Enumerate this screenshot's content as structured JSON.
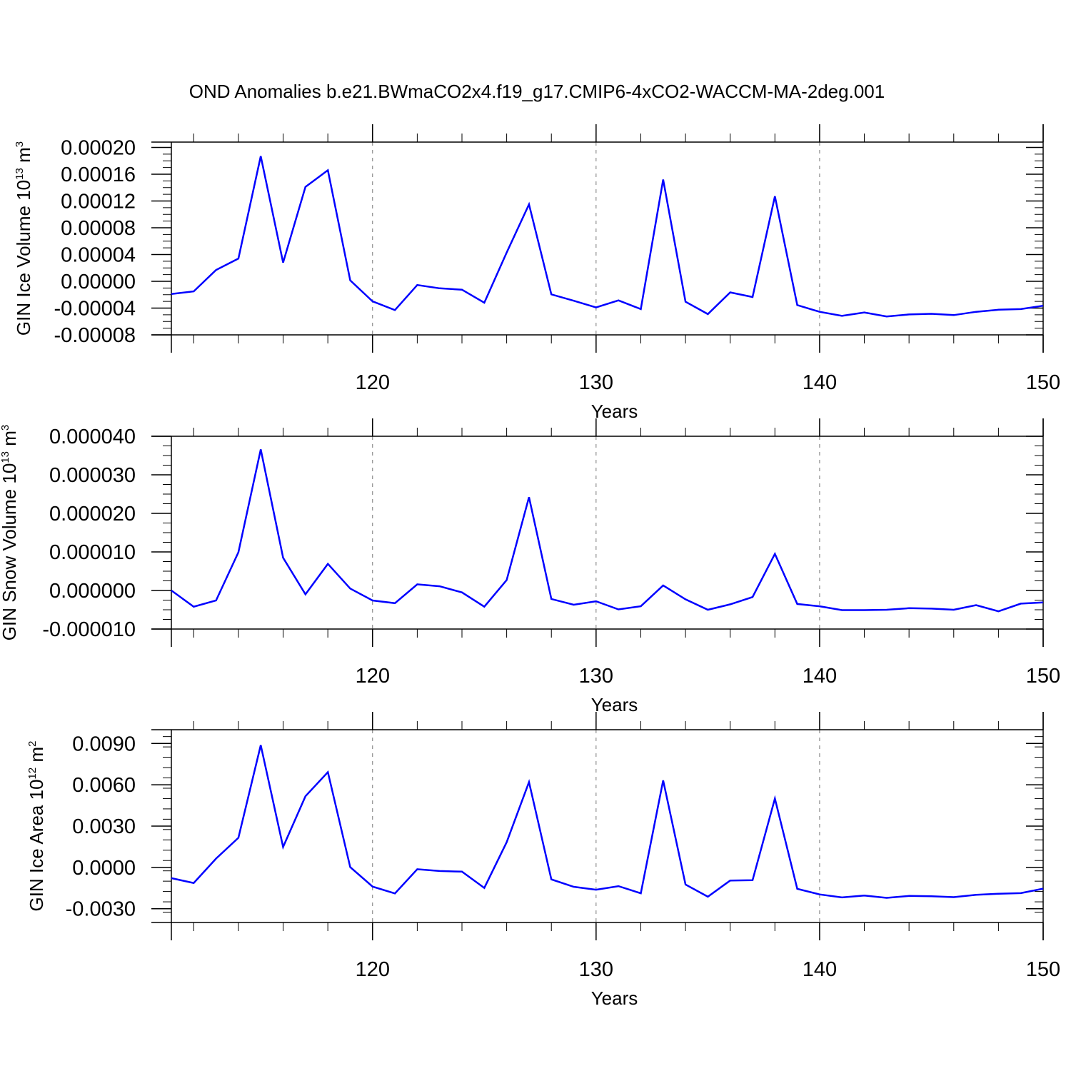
{
  "figure": {
    "title": "OND Anomalies b.e21.BWmaCO2x4.f19_g17.CMIP6-4xCO2-WACCM-MA-2deg.001"
  },
  "chart_data": [
    {
      "type": "line",
      "xlabel": "Years",
      "ylabel_text": "GIN Ice Volume 10",
      "ylabel_exp": "13",
      "ylabel_unit": "m",
      "ylabel_unit_exp": "3",
      "xlim": [
        111,
        150
      ],
      "ylim": [
        -8e-05,
        0.000208
      ],
      "xticks": [
        120,
        130,
        140,
        150
      ],
      "xtick_labels": [
        "120",
        "130",
        "140",
        "150"
      ],
      "yticks": [
        -8e-05,
        -4e-05,
        0,
        4e-05,
        8e-05,
        0.00012,
        0.00016,
        0.0002
      ],
      "ytick_labels": [
        "-0.00008",
        "-0.00004",
        "0.00000",
        "0.00004",
        "0.00008",
        "0.00012",
        "0.00016",
        "0.00020"
      ],
      "grid": "dashed vertical at major x ticks",
      "line_color": "#0000ff",
      "x": [
        111,
        112,
        113,
        114,
        115,
        116,
        117,
        118,
        119,
        120,
        121,
        122,
        123,
        124,
        125,
        126,
        127,
        128,
        129,
        130,
        131,
        132,
        133,
        134,
        135,
        136,
        137,
        138,
        139,
        140,
        141,
        142,
        143,
        144,
        145,
        146,
        147,
        148,
        149,
        150
      ],
      "values": [
        -1.9e-05,
        -1.5e-05,
        1.7e-05,
        3.4e-05,
        0.000187,
        2.8e-05,
        0.000141,
        0.000166,
        1.5e-06,
        -3e-05,
        -4.3e-05,
        -5.5e-06,
        -1.05e-05,
        -1.25e-05,
        -3.2e-05,
        4.3e-05,
        0.000115,
        -1.95e-05,
        -2.9e-05,
        -3.9e-05,
        -2.85e-05,
        -4.15e-05,
        0.000152,
        -3.05e-05,
        -4.9e-05,
        -1.65e-05,
        -2.35e-05,
        0.000127,
        -3.55e-05,
        -4.55e-05,
        -5.15e-05,
        -4.65e-05,
        -5.25e-05,
        -4.95e-05,
        -4.85e-05,
        -5.05e-05,
        -4.55e-05,
        -4.25e-05,
        -4.15e-05,
        -3.65e-05
      ]
    },
    {
      "type": "line",
      "xlabel": "Years",
      "ylabel_text": "GIN Snow Volume 10",
      "ylabel_exp": "13",
      "ylabel_unit": "m",
      "ylabel_unit_exp": "3",
      "xlim": [
        111,
        150
      ],
      "ylim": [
        -1e-05,
        4e-05
      ],
      "xticks": [
        120,
        130,
        140,
        150
      ],
      "xtick_labels": [
        "120",
        "130",
        "140",
        "150"
      ],
      "yticks": [
        -1e-05,
        0,
        1e-05,
        2e-05,
        3e-05,
        4e-05
      ],
      "ytick_labels": [
        "-0.000010",
        "0.000000",
        "0.000010",
        "0.000020",
        "0.000030",
        "0.000040"
      ],
      "grid": "dashed vertical at major x ticks",
      "line_color": "#0000ff",
      "x": [
        111,
        112,
        113,
        114,
        115,
        116,
        117,
        118,
        119,
        120,
        121,
        122,
        123,
        124,
        125,
        126,
        127,
        128,
        129,
        130,
        131,
        132,
        133,
        134,
        135,
        136,
        137,
        138,
        139,
        140,
        141,
        142,
        143,
        144,
        145,
        146,
        147,
        148,
        149,
        150
      ],
      "values": [
        0.0,
        -4.2e-06,
        -2.6e-06,
        9.9e-06,
        3.66e-05,
        8.5e-06,
        -1e-06,
        6.9e-06,
        5e-07,
        -2.6e-06,
        -3.3e-06,
        1.6e-06,
        1.1e-06,
        -5e-07,
        -4.2e-06,
        2.7e-06,
        2.42e-05,
        -2.2e-06,
        -3.7e-06,
        -2.8e-06,
        -4.9e-06,
        -4.1e-06,
        1.3e-06,
        -2.3e-06,
        -5e-06,
        -3.6e-06,
        -1.7e-06,
        9.5e-06,
        -3.5e-06,
        -4.1e-06,
        -5.1e-06,
        -5.1e-06,
        -5e-06,
        -4.6e-06,
        -4.7e-06,
        -5e-06,
        -3.8e-06,
        -5.4e-06,
        -3.4e-06,
        -3.1e-06
      ]
    },
    {
      "type": "line",
      "xlabel": "Years",
      "ylabel_text": "GIN Ice Area 10",
      "ylabel_exp": "12",
      "ylabel_unit": "m",
      "ylabel_unit_exp": "2",
      "xlim": [
        111,
        150
      ],
      "ylim": [
        -0.004,
        0.01
      ],
      "xticks": [
        120,
        130,
        140,
        150
      ],
      "xtick_labels": [
        "120",
        "130",
        "140",
        "150"
      ],
      "yticks": [
        -0.003,
        0.0,
        0.003,
        0.006,
        0.009
      ],
      "ytick_labels": [
        "-0.0030",
        "0.0000",
        "0.0030",
        "0.0060",
        "0.0090"
      ],
      "grid": "dashed vertical at major x ticks",
      "line_color": "#0000ff",
      "x": [
        111,
        112,
        113,
        114,
        115,
        116,
        117,
        118,
        119,
        120,
        121,
        122,
        123,
        124,
        125,
        126,
        127,
        128,
        129,
        130,
        131,
        132,
        133,
        134,
        135,
        136,
        137,
        138,
        139,
        140,
        141,
        142,
        143,
        144,
        145,
        146,
        147,
        148,
        149,
        150
      ],
      "values": [
        -0.00078,
        -0.00113,
        0.00064,
        0.00215,
        0.00888,
        0.00148,
        0.00517,
        0.00692,
        2e-05,
        -0.00139,
        -0.00189,
        -0.00013,
        -0.00026,
        -0.00031,
        -0.00149,
        0.00183,
        0.0062,
        -0.00087,
        -0.00141,
        -0.00162,
        -0.00136,
        -0.00188,
        0.00632,
        -0.00124,
        -0.00213,
        -0.00095,
        -0.00093,
        0.005,
        -0.00155,
        -0.00196,
        -0.00218,
        -0.00204,
        -0.00221,
        -0.00207,
        -0.00209,
        -0.00216,
        -0.00199,
        -0.00191,
        -0.00187,
        -0.00154
      ]
    }
  ]
}
